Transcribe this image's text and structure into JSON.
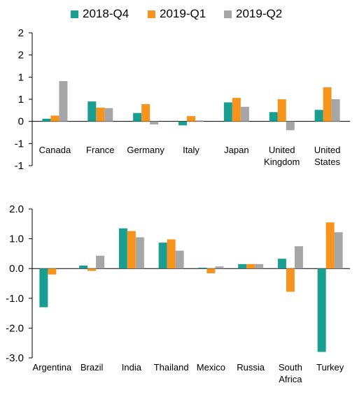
{
  "legend": [
    {
      "label": "2018-Q4",
      "color": "#1a9e92"
    },
    {
      "label": "2019-Q1",
      "color": "#f7941d"
    },
    {
      "label": "2019-Q2",
      "color": "#a6a6a6"
    }
  ],
  "chart_data": [
    {
      "type": "bar",
      "title": "",
      "xlabel": "",
      "ylabel": "",
      "legend_position": "top",
      "grid": false,
      "ylim": [
        -1,
        2
      ],
      "ytick_values": [
        2,
        1.5,
        1,
        0.5,
        0,
        -0.5,
        -1
      ],
      "ytick_labels": [
        "2",
        "2",
        "1",
        "1",
        "0",
        "-1",
        "-1"
      ],
      "categories": [
        [
          "Canada"
        ],
        [
          "France"
        ],
        [
          "Germany"
        ],
        [
          "Italy"
        ],
        [
          "Japan"
        ],
        [
          "United",
          "Kingdom"
        ],
        [
          "United",
          "States"
        ]
      ],
      "series": [
        {
          "name": "2018-Q4",
          "color": "#1a9e92",
          "values": [
            0.06,
            0.45,
            0.19,
            -0.09,
            0.43,
            0.21,
            0.26
          ]
        },
        {
          "name": "2019-Q1",
          "color": "#f7941d",
          "values": [
            0.13,
            0.31,
            0.39,
            0.12,
            0.53,
            0.5,
            0.77
          ]
        },
        {
          "name": "2019-Q2",
          "color": "#a6a6a6",
          "values": [
            0.91,
            0.3,
            -0.07,
            0.02,
            0.33,
            -0.2,
            0.5
          ]
        }
      ]
    },
    {
      "type": "bar",
      "title": "",
      "xlabel": "",
      "ylabel": "",
      "grid": false,
      "ylim": [
        -3,
        2
      ],
      "ytick_values": [
        2,
        1,
        0,
        -1,
        -2,
        -3
      ],
      "ytick_labels": [
        "2.0",
        "1.0",
        "0.0",
        "-1.0",
        "-2.0",
        "-3.0"
      ],
      "categories": [
        [
          "Argentina"
        ],
        [
          "Brazil"
        ],
        [
          "India"
        ],
        [
          "Thailand"
        ],
        [
          "Mexico"
        ],
        [
          "Russia"
        ],
        [
          "South",
          "Africa"
        ],
        [
          "Turkey"
        ]
      ],
      "series": [
        {
          "name": "2018-Q4",
          "color": "#1a9e92",
          "values": [
            -1.3,
            0.1,
            1.35,
            0.87,
            0.03,
            0.15,
            0.33,
            -2.8
          ]
        },
        {
          "name": "2019-Q1",
          "color": "#f7941d",
          "values": [
            -0.2,
            -0.08,
            1.26,
            0.98,
            -0.16,
            0.15,
            -0.78,
            1.55
          ]
        },
        {
          "name": "2019-Q2",
          "color": "#a6a6a6",
          "values": [
            0.0,
            0.43,
            1.05,
            0.6,
            0.07,
            0.15,
            0.75,
            1.22
          ]
        }
      ]
    }
  ]
}
